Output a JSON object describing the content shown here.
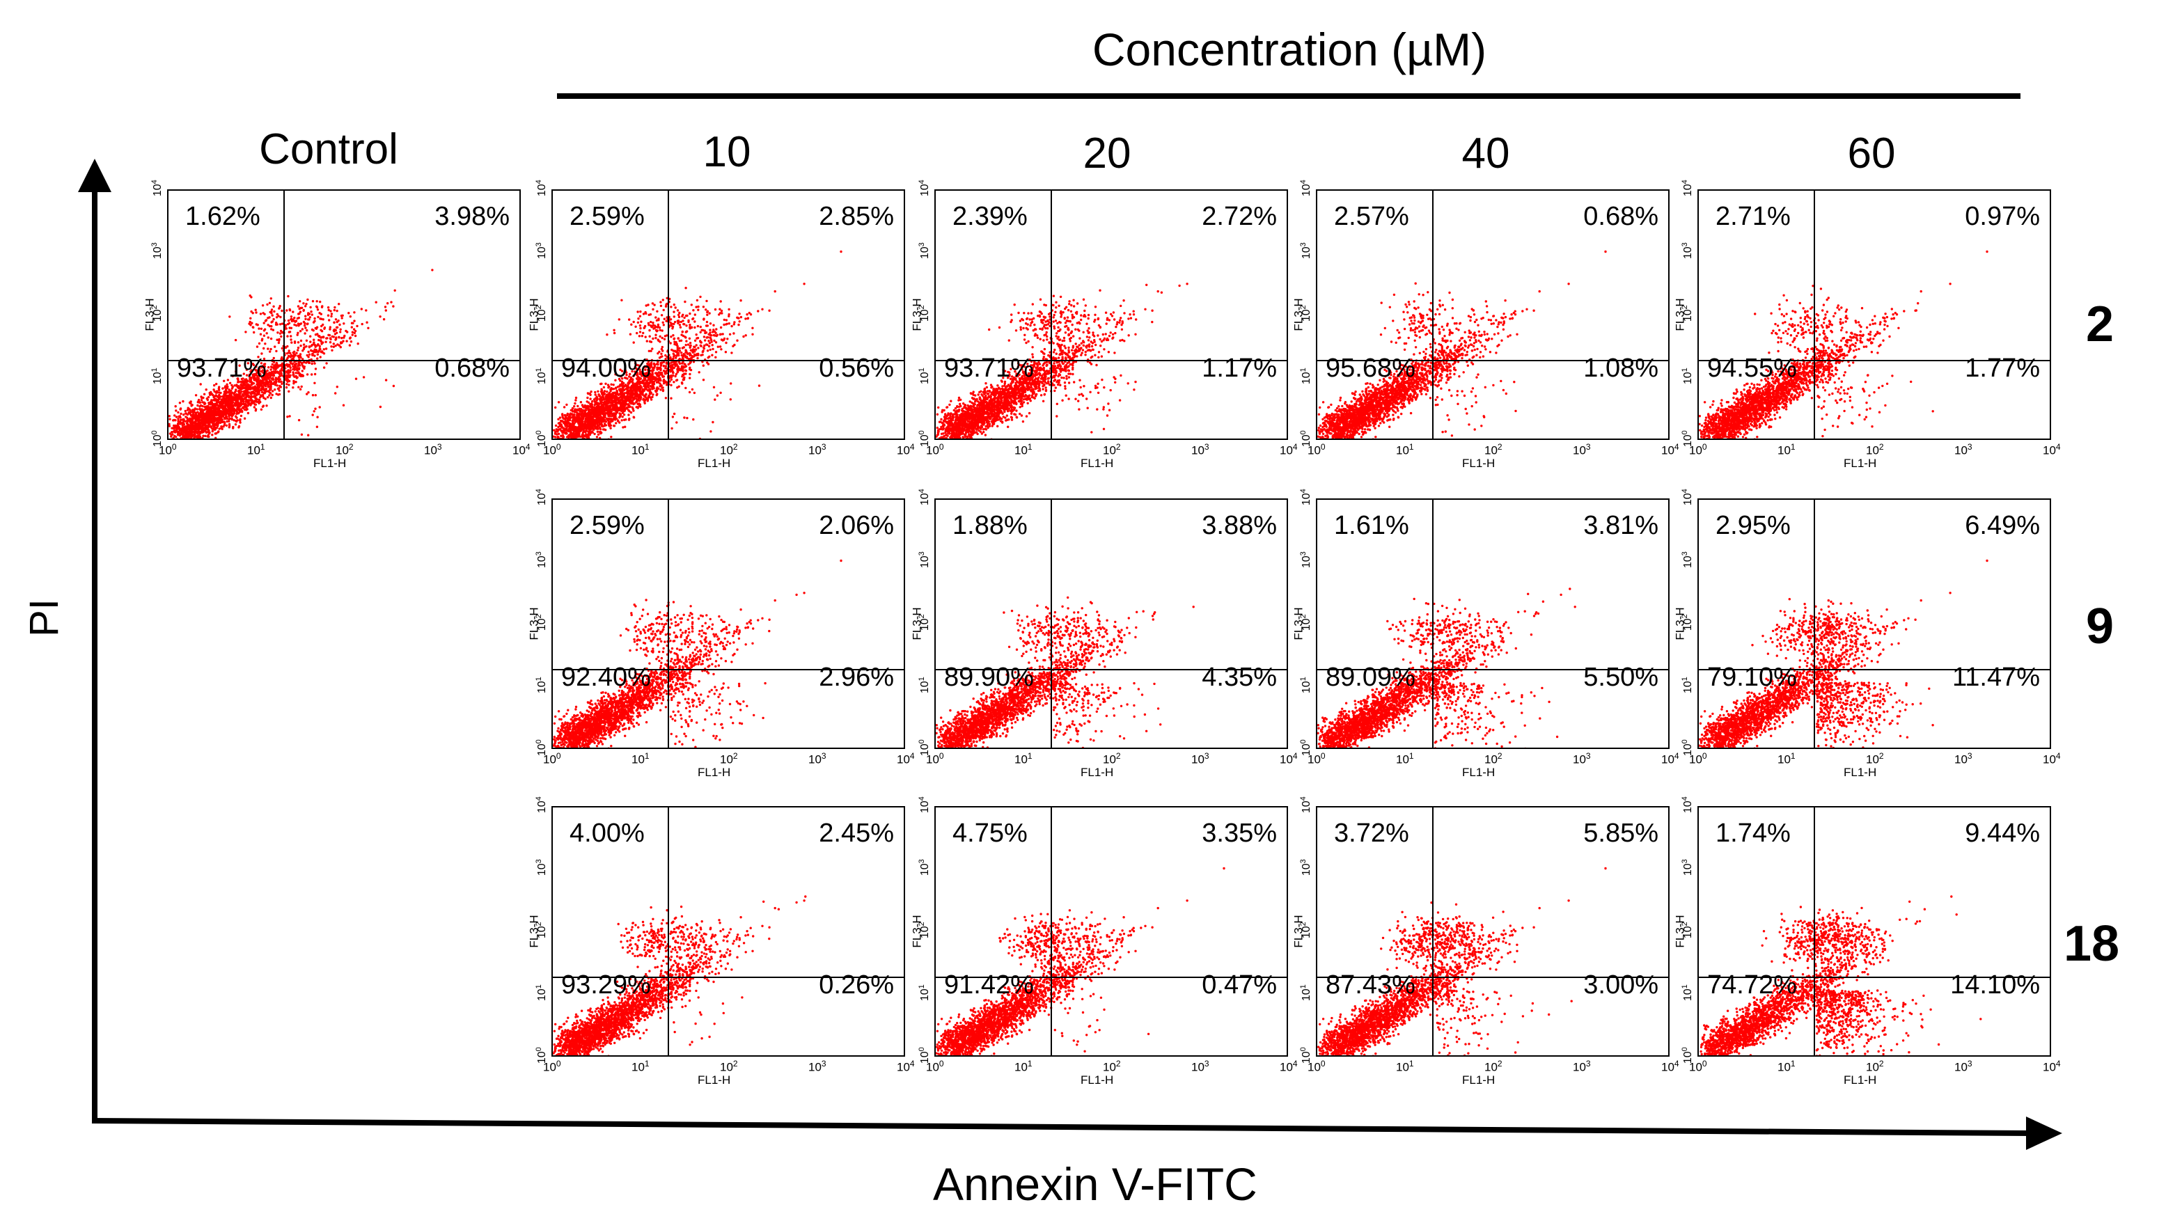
{
  "figure": {
    "title": "Concentration (µM)",
    "x_axis_label": "Annexin V-FITC",
    "y_axis_label": "PI",
    "control_label": "Control",
    "column_labels": [
      "10",
      "20",
      "40",
      "60"
    ],
    "row_labels": [
      "2",
      "9",
      "18"
    ],
    "dot_color": "#ff0000"
  },
  "chart_data": {
    "type": "scatter",
    "subtype": "flow-cytometry-quadrant-plots",
    "x_channel": "FL1-H",
    "y_channel": "FL3-H",
    "axis_scale": "log",
    "xlim": [
      1,
      10000
    ],
    "ylim": [
      1,
      10000
    ],
    "x_tick_base": "10",
    "x_tick_exponents": [
      "0",
      "1",
      "2",
      "3",
      "4"
    ],
    "quadrant_gate": {
      "x": 20,
      "y": 20
    },
    "panels": [
      {
        "id": "control",
        "column": "Control",
        "row": "2",
        "UL": "1.62%",
        "UR": "3.98%",
        "LL": "93.71%",
        "LR": "0.68%"
      },
      {
        "id": "c10-r2",
        "column": "10",
        "row": "2",
        "UL": "2.59%",
        "UR": "2.85%",
        "LL": "94.00%",
        "LR": "0.56%"
      },
      {
        "id": "c20-r2",
        "column": "20",
        "row": "2",
        "UL": "2.39%",
        "UR": "2.72%",
        "LL": "93.71%",
        "LR": "1.17%"
      },
      {
        "id": "c40-r2",
        "column": "40",
        "row": "2",
        "UL": "2.57%",
        "UR": "0.68%",
        "LL": "95.68%",
        "LR": "1.08%"
      },
      {
        "id": "c60-r2",
        "column": "60",
        "row": "2",
        "UL": "2.71%",
        "UR": "0.97%",
        "LL": "94.55%",
        "LR": "1.77%"
      },
      {
        "id": "c10-r9",
        "column": "10",
        "row": "9",
        "UL": "2.59%",
        "UR": "2.06%",
        "LL": "92.40%",
        "LR": "2.96%"
      },
      {
        "id": "c20-r9",
        "column": "20",
        "row": "9",
        "UL": "1.88%",
        "UR": "3.88%",
        "LL": "89.90%",
        "LR": "4.35%"
      },
      {
        "id": "c40-r9",
        "column": "40",
        "row": "9",
        "UL": "1.61%",
        "UR": "3.81%",
        "LL": "89.09%",
        "LR": "5.50%"
      },
      {
        "id": "c60-r9",
        "column": "60",
        "row": "9",
        "UL": "2.95%",
        "UR": "6.49%",
        "LL": "79.10%",
        "LR": "11.47%"
      },
      {
        "id": "c10-r18",
        "column": "10",
        "row": "18",
        "UL": "4.00%",
        "UR": "2.45%",
        "LL": "93.29%",
        "LR": "0.26%"
      },
      {
        "id": "c20-r18",
        "column": "20",
        "row": "18",
        "UL": "4.75%",
        "UR": "3.35%",
        "LL": "91.42%",
        "LR": "0.47%"
      },
      {
        "id": "c40-r18",
        "column": "40",
        "row": "18",
        "UL": "3.72%",
        "UR": "5.85%",
        "LL": "87.43%",
        "LR": "3.00%"
      },
      {
        "id": "c60-r18",
        "column": "60",
        "row": "18",
        "UL": "1.74%",
        "UR": "9.44%",
        "LL": "74.72%",
        "LR": "14.10%"
      }
    ]
  }
}
